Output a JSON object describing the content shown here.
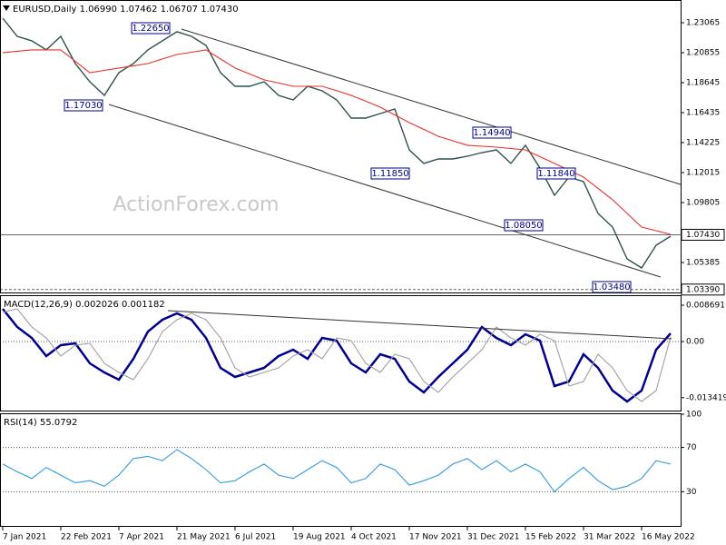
{
  "chart_data": [
    {
      "type": "line",
      "title": "EURUSD,Daily  1.06990 1.07462 1.06707 1.07430",
      "watermark": "ActionForex.com",
      "ylim": [
        1.03175,
        1.24739
      ],
      "yticks": [
        1.23065,
        1.20855,
        1.18645,
        1.16435,
        1.14225,
        1.12015,
        1.09805,
        {
          "value": 1.0743,
          "label": "1.07430"
        },
        1.05385,
        {
          "value": 1.0339,
          "label": "1.03390"
        }
      ],
      "series": [
        {
          "color": "#2f4f4f",
          "values": [
            1.234,
            1.2206,
            1.2173,
            1.2106,
            1.2206,
            1.2005,
            1.1871,
            1.1771,
            1.1938,
            1.2005,
            1.2106,
            1.2173,
            1.224,
            1.2206,
            1.2139,
            1.1938,
            1.1838,
            1.1838,
            1.1871,
            1.1771,
            1.1737,
            1.1838,
            1.1804,
            1.1737,
            1.1603,
            1.1603,
            1.1637,
            1.167,
            1.1369,
            1.1269,
            1.1302,
            1.1302,
            1.1322,
            1.1349,
            1.1369,
            1.1269,
            1.1403,
            1.1235,
            1.1034,
            1.1168,
            1.1135,
            1.09,
            1.08,
            1.0565,
            1.0498,
            1.0666,
            1.0733
          ]
        },
        {
          "color": "#e8302a",
          "values": [
            1.2085,
            1.2096,
            1.2106,
            1.2106,
            1.2106,
            1.2022,
            1.1938,
            1.1955,
            1.1972,
            1.1989,
            1.2005,
            1.2039,
            1.2072,
            1.2089,
            1.2106,
            1.2039,
            1.1972,
            1.1929,
            1.1885,
            1.1862,
            1.1838,
            1.1838,
            1.1838,
            1.1805,
            1.1771,
            1.1728,
            1.1684,
            1.1627,
            1.157,
            1.152,
            1.1469,
            1.1436,
            1.1403,
            1.1396,
            1.1389,
            1.1379,
            1.1369,
            1.1319,
            1.1269,
            1.1219,
            1.1168,
            1.1085,
            1.1001,
            1.0901,
            1.08,
            1.0773,
            1.0746
          ]
        }
      ],
      "annotations": [
        "1.22650",
        "1.17030",
        "1.11850",
        "1.14940",
        "1.11840",
        "1.08050",
        "1.03480"
      ]
    },
    {
      "type": "line",
      "title": "MACD(12,26,9) 0.002026 0.001182",
      "ylim": [
        -0.01651,
        0.01108
      ],
      "yticks": [
        0.008691,
        {
          "value": 0,
          "label": "0.00"
        },
        -0.013419
      ],
      "grid": "dotted",
      "series": [
        {
          "color": "#00008b",
          "values": [
            0.00782,
            0.00348,
            0.00087,
            -0.00348,
            -0.00087,
            -0.00043,
            -0.00522,
            -0.00739,
            -0.00913,
            -0.00413,
            0.00239,
            0.00522,
            0.00674,
            0.00522,
            0.00087,
            -0.0063,
            -0.00847,
            -0.00739,
            -0.0063,
            -0.00348,
            -0.00196,
            -0.00413,
            0.00087,
            0.00022,
            -0.00522,
            -0.00739,
            -0.00304,
            -0.00413,
            -0.00956,
            -0.01217,
            -0.00847,
            -0.00522,
            -0.00196,
            0.00348,
            0.00087,
            -0.00087,
            0.00174,
            0.00022,
            -0.01065,
            -0.00956,
            -0.00304,
            -0.0063,
            -0.01173,
            -0.01434,
            -0.01173,
            -0.00196,
            0.00196
          ]
        },
        {
          "color": "#a0a0a0",
          "values": [
            0.007,
            0.00782,
            0.00348,
            0.00087,
            -0.00348,
            -0.00087,
            -0.00043,
            -0.00522,
            -0.00739,
            -0.00913,
            -0.00413,
            0.00239,
            0.00522,
            0.00674,
            0.00522,
            0.00087,
            -0.0063,
            -0.00847,
            -0.00739,
            -0.0063,
            -0.00348,
            -0.00196,
            -0.00413,
            0.00087,
            0.00022,
            -0.00522,
            -0.00739,
            -0.00304,
            -0.00413,
            -0.00956,
            -0.01217,
            -0.00847,
            -0.00522,
            -0.00196,
            0.00348,
            0.00087,
            -0.00087,
            0.00174,
            0.00022,
            -0.01065,
            -0.00956,
            -0.00304,
            -0.0063,
            -0.01173,
            -0.01434,
            -0.01173,
            0.00118
          ]
        }
      ]
    },
    {
      "type": "line",
      "title": "RSI(14) 55.0792",
      "ylim": [
        0,
        100
      ],
      "yticks": [
        100,
        70,
        30
      ],
      "grid": "dotted",
      "series": [
        {
          "color": "#3399dd",
          "values": [
            55,
            48,
            42,
            52,
            45,
            38,
            40,
            35,
            45,
            60,
            62,
            58,
            68,
            60,
            50,
            38,
            40,
            48,
            55,
            45,
            42,
            50,
            58,
            52,
            38,
            42,
            55,
            50,
            36,
            40,
            45,
            55,
            60,
            50,
            58,
            48,
            55,
            48,
            30,
            42,
            52,
            40,
            32,
            35,
            42,
            58,
            55
          ]
        }
      ],
      "x_labels": [
        "7 Jan 2021",
        "22 Feb 2021",
        "7 Apr 2021",
        "21 May 2021",
        "6 Jul 2021",
        "19 Aug 2021",
        "4 Oct 2021",
        "17 Nov 2021",
        "31 Dec 2021",
        "15 Feb 2022",
        "31 Mar 2022",
        "16 May 2022"
      ]
    }
  ]
}
